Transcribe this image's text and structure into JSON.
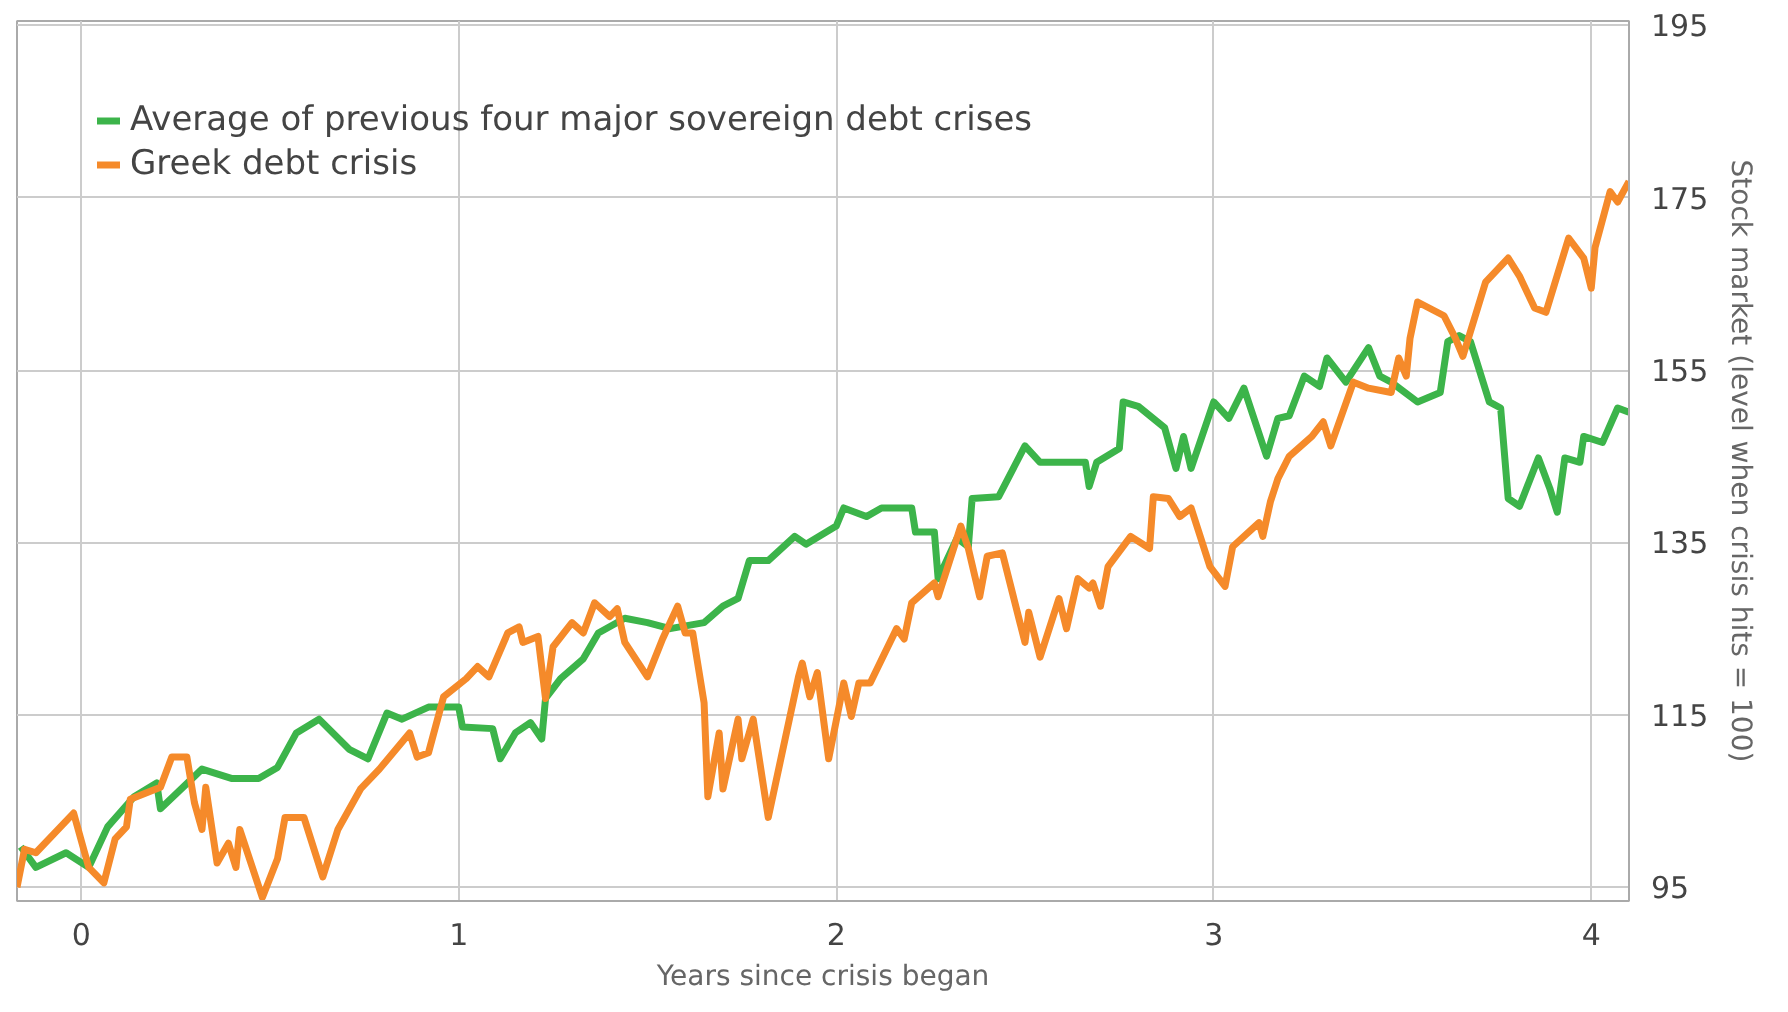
{
  "chart_data": {
    "type": "line",
    "xlabel": "Years since crisis began",
    "ylabel": "Stock market (level when crisis hits = 100)",
    "xlim": [
      -0.17,
      4.1
    ],
    "ylim": [
      93.4,
      195.5
    ],
    "xticks": [
      0,
      1,
      2,
      3,
      4
    ],
    "yticks": [
      95,
      115,
      135,
      155,
      175,
      195
    ],
    "grid": true,
    "legend": "top left",
    "line_style": "solid",
    "series": [
      {
        "name": "Average of previous four major sovereign debt crises",
        "color": "#3cb44a",
        "x": [
          -0.16,
          -0.12,
          -0.04,
          0.02,
          0.07,
          0.14,
          0.2,
          0.21,
          0.32,
          0.4,
          0.47,
          0.52,
          0.57,
          0.63,
          0.71,
          0.76,
          0.81,
          0.85,
          0.92,
          1.0,
          1.01,
          1.09,
          1.11,
          1.15,
          1.19,
          1.22,
          1.23,
          1.27,
          1.33,
          1.37,
          1.44,
          1.5,
          1.56,
          1.65,
          1.7,
          1.74,
          1.77,
          1.82,
          1.89,
          1.92,
          2.0,
          2.02,
          2.08,
          2.12,
          2.2,
          2.21,
          2.26,
          2.27,
          2.32,
          2.35,
          2.36,
          2.43,
          2.5,
          2.54,
          2.66,
          2.67,
          2.69,
          2.75,
          2.76,
          2.8,
          2.87,
          2.9,
          2.92,
          2.94,
          3.0,
          3.04,
          3.08,
          3.14,
          3.17,
          3.2,
          3.24,
          3.28,
          3.3,
          3.35,
          3.41,
          3.44,
          3.47,
          3.54,
          3.6,
          3.62,
          3.65,
          3.68,
          3.73,
          3.76,
          3.78,
          3.81,
          3.86,
          3.89,
          3.91,
          3.93,
          3.97,
          3.98,
          4.03,
          4.07,
          4.1
        ],
        "values": [
          99.7,
          97.3,
          99.0,
          97.3,
          102.0,
          105.5,
          107.1,
          104.1,
          108.7,
          107.6,
          107.6,
          108.9,
          112.9,
          114.5,
          111.0,
          109.9,
          115.2,
          114.5,
          115.9,
          115.9,
          113.6,
          113.4,
          109.9,
          112.9,
          114.1,
          112.2,
          116.9,
          119.2,
          121.5,
          124.5,
          126.2,
          125.7,
          125.0,
          125.7,
          127.6,
          128.5,
          132.9,
          132.9,
          135.7,
          134.8,
          136.9,
          139.0,
          138.0,
          139.0,
          139.0,
          136.2,
          136.2,
          130.8,
          135.5,
          134.5,
          140.1,
          140.3,
          146.2,
          144.3,
          144.3,
          141.5,
          144.3,
          145.9,
          151.3,
          150.8,
          148.3,
          143.6,
          147.3,
          143.6,
          151.3,
          149.4,
          152.9,
          145.0,
          149.4,
          149.7,
          154.3,
          153.1,
          156.4,
          153.6,
          157.6,
          154.3,
          153.6,
          151.3,
          152.4,
          158.3,
          159.0,
          158.3,
          151.3,
          150.6,
          140.1,
          139.2,
          144.8,
          141.3,
          138.5,
          144.8,
          144.3,
          147.3,
          146.6,
          150.6,
          150.1
        ]
      },
      {
        "name": "Greek debt crisis",
        "color": "#f58a2a",
        "x": [
          -0.17,
          -0.15,
          -0.12,
          -0.02,
          0.02,
          0.06,
          0.09,
          0.12,
          0.13,
          0.21,
          0.24,
          0.28,
          0.3,
          0.32,
          0.33,
          0.36,
          0.39,
          0.41,
          0.42,
          0.48,
          0.52,
          0.54,
          0.59,
          0.64,
          0.68,
          0.74,
          0.79,
          0.87,
          0.89,
          0.92,
          0.96,
          1.02,
          1.05,
          1.08,
          1.13,
          1.16,
          1.17,
          1.21,
          1.23,
          1.25,
          1.3,
          1.33,
          1.36,
          1.4,
          1.42,
          1.44,
          1.5,
          1.54,
          1.58,
          1.6,
          1.62,
          1.65,
          1.66,
          1.69,
          1.7,
          1.74,
          1.75,
          1.78,
          1.82,
          1.9,
          1.91,
          1.93,
          1.95,
          1.98,
          2.02,
          2.04,
          2.06,
          2.09,
          2.16,
          2.18,
          2.2,
          2.26,
          2.27,
          2.33,
          2.35,
          2.38,
          2.4,
          2.44,
          2.5,
          2.51,
          2.54,
          2.59,
          2.61,
          2.64,
          2.67,
          2.68,
          2.7,
          2.72,
          2.78,
          2.83,
          2.84,
          2.88,
          2.91,
          2.94,
          2.99,
          3.03,
          3.05,
          3.12,
          3.13,
          3.15,
          3.17,
          3.2,
          3.26,
          3.29,
          3.31,
          3.37,
          3.41,
          3.47,
          3.49,
          3.51,
          3.52,
          3.54,
          3.61,
          3.64,
          3.66,
          3.72,
          3.78,
          3.81,
          3.85,
          3.88,
          3.94,
          3.98,
          4.0,
          4.01,
          4.05,
          4.07,
          4.1
        ],
        "values": [
          95.0,
          99.4,
          99.0,
          103.6,
          97.3,
          95.5,
          100.6,
          102.0,
          105.2,
          106.6,
          110.1,
          110.1,
          104.8,
          101.7,
          106.6,
          97.8,
          100.1,
          97.3,
          101.7,
          93.8,
          98.3,
          103.1,
          103.1,
          96.2,
          101.7,
          106.4,
          108.7,
          112.9,
          110.1,
          110.6,
          117.1,
          119.2,
          120.6,
          119.4,
          124.5,
          125.2,
          123.4,
          124.1,
          116.9,
          122.9,
          125.7,
          124.5,
          128.0,
          126.4,
          127.3,
          123.4,
          119.4,
          123.8,
          127.6,
          124.5,
          124.5,
          116.4,
          105.5,
          112.9,
          106.4,
          114.5,
          109.9,
          114.5,
          103.1,
          119.4,
          121.0,
          117.1,
          119.9,
          109.9,
          118.7,
          114.8,
          118.7,
          118.7,
          125.0,
          123.8,
          128.0,
          130.3,
          128.7,
          136.9,
          134.3,
          128.7,
          133.4,
          133.8,
          123.4,
          126.9,
          121.7,
          128.5,
          125.0,
          130.8,
          129.7,
          130.3,
          127.6,
          132.2,
          135.7,
          134.3,
          140.3,
          140.1,
          138.0,
          139.0,
          132.2,
          129.9,
          134.5,
          137.3,
          135.7,
          139.7,
          142.4,
          145.0,
          147.3,
          149.0,
          146.2,
          153.6,
          152.9,
          152.4,
          156.4,
          154.3,
          158.7,
          162.9,
          161.3,
          158.7,
          156.6,
          165.2,
          168.0,
          165.9,
          162.2,
          161.7,
          170.3,
          168.0,
          164.5,
          169.2,
          175.7,
          174.5,
          176.9
        ]
      }
    ]
  }
}
